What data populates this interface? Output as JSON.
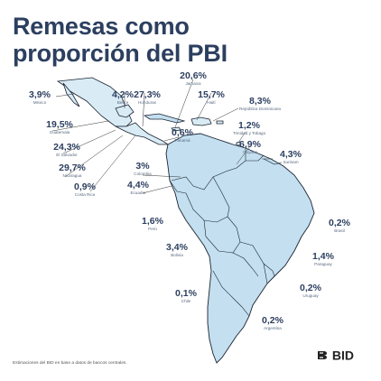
{
  "title_lines": [
    "Remesas como",
    "proporción del PBI"
  ],
  "countries": [
    {
      "pct": "3,9%",
      "name": "México"
    },
    {
      "pct": "19,5%",
      "name": "Guatemala"
    },
    {
      "pct": "24,3%",
      "name": "El Salvador"
    },
    {
      "pct": "29,7%",
      "name": "Nicaragua"
    },
    {
      "pct": "0,9%",
      "name": "Costa Rica"
    },
    {
      "pct": "4,2%",
      "name": "Belice"
    },
    {
      "pct": "27,3%",
      "name": "Honduras"
    },
    {
      "pct": "20,6%",
      "name": "Jamaica"
    },
    {
      "pct": "15,7%",
      "name": "Haití"
    },
    {
      "pct": "8,3%",
      "name": "República Dominicana"
    },
    {
      "pct": "0,6%",
      "name": "Panamá"
    },
    {
      "pct": "1,2%",
      "name": "Trinidad y Tobago"
    },
    {
      "pct": "6,9%",
      "name": "Guyana"
    },
    {
      "pct": "4,3%",
      "name": "Surinam"
    },
    {
      "pct": "3%",
      "name": "Colombia"
    },
    {
      "pct": "4,4%",
      "name": "Ecuador"
    },
    {
      "pct": "1,6%",
      "name": "Perú"
    },
    {
      "pct": "3,4%",
      "name": "Bolivia"
    },
    {
      "pct": "0,2%",
      "name": "Brasil"
    },
    {
      "pct": "1,4%",
      "name": "Paraguay"
    },
    {
      "pct": "0,2%",
      "name": "Uruguay"
    },
    {
      "pct": "0,1%",
      "name": "Chile"
    },
    {
      "pct": "0,2%",
      "name": "Argentina"
    }
  ],
  "source_note": "Estimaciones del BID en base a datos de bancos centrales.",
  "logo_text": "BID",
  "colors": {
    "title": "#2c3f5f",
    "land_highlight": "#d9ecf6",
    "land_dark": "#c3dff0",
    "border": "#1a2330"
  }
}
